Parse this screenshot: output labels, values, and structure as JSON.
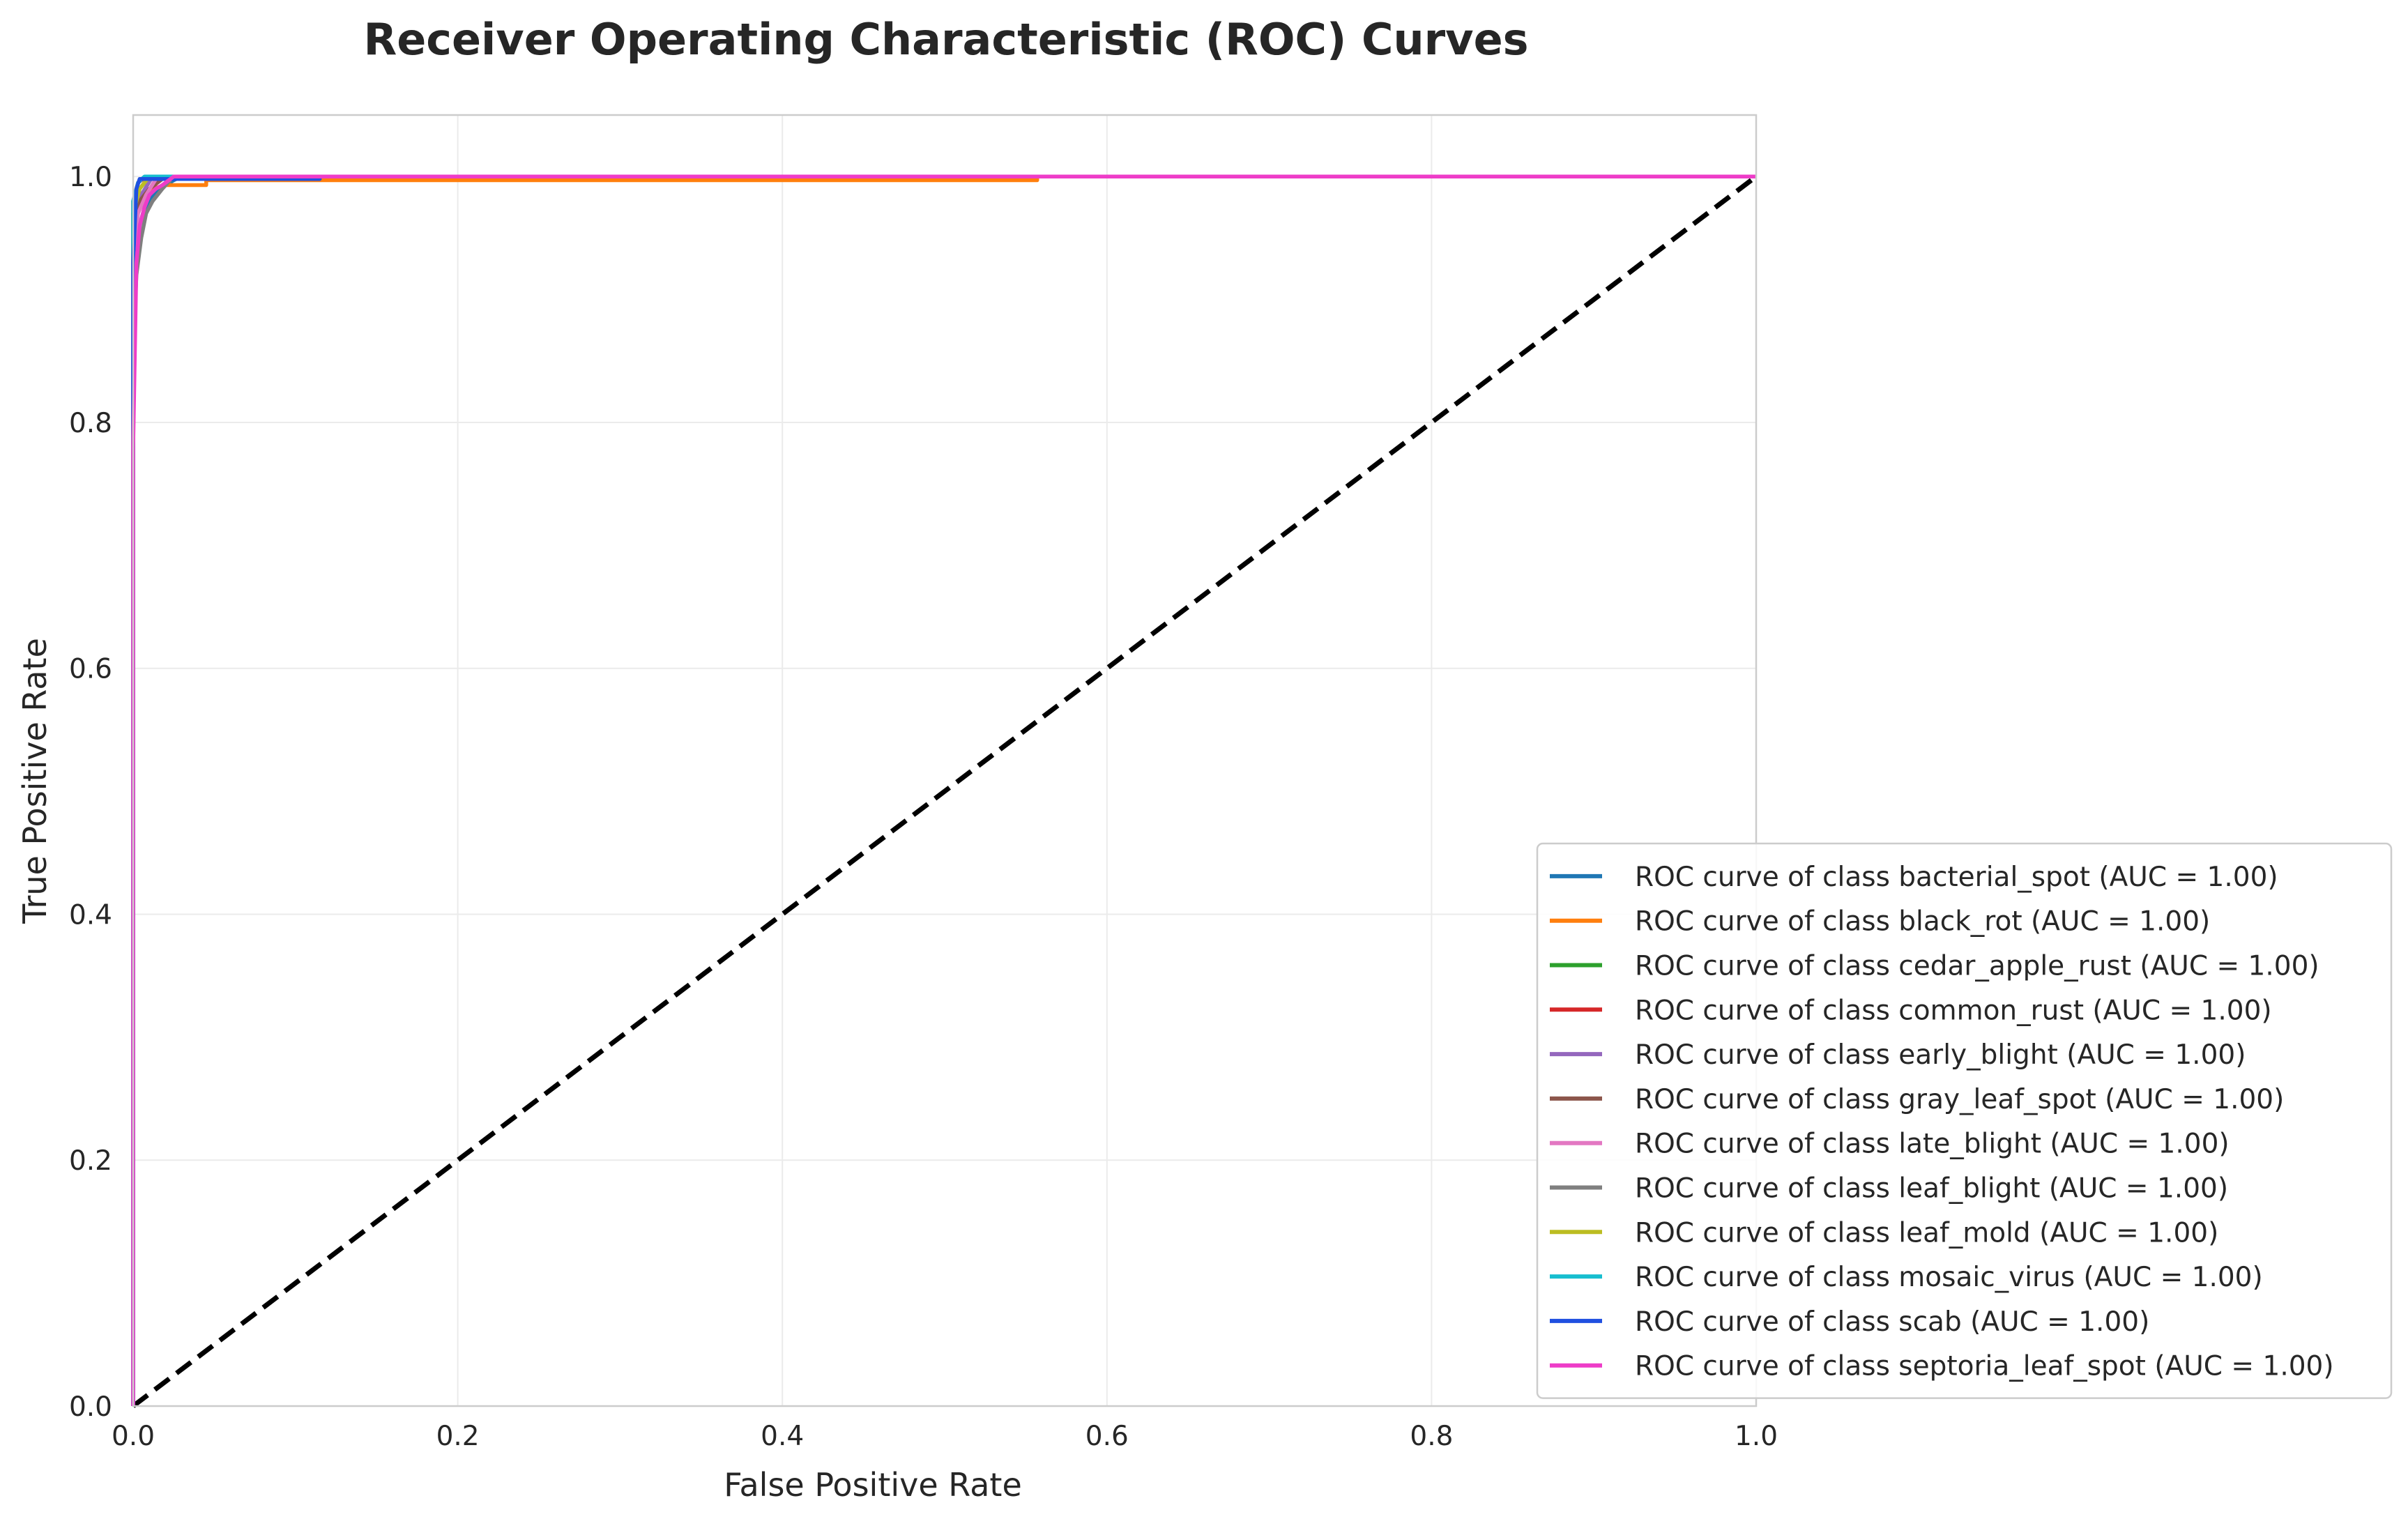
{
  "chart_data": {
    "type": "line",
    "title": "Receiver Operating Characteristic (ROC) Curves",
    "xlabel": "False Positive Rate",
    "ylabel": "True Positive Rate",
    "xlim": [
      0.0,
      1.0
    ],
    "ylim": [
      0.0,
      1.05
    ],
    "x_ticks": [
      "0.0",
      "0.2",
      "0.4",
      "0.6",
      "0.8",
      "1.0"
    ],
    "y_ticks": [
      "0.0",
      "0.2",
      "0.4",
      "0.6",
      "0.8",
      "1.0"
    ],
    "grid": true,
    "legend_position": "lower-right",
    "reference_line": {
      "x": [
        0,
        1
      ],
      "y": [
        0,
        1
      ],
      "color": "#000000",
      "style": "dashed"
    },
    "series": [
      {
        "name": "ROC curve of class bacterial_spot (AUC = 1.00)",
        "color": "#1f77b4",
        "x": [
          0,
          0,
          0.002,
          0.004,
          0.006,
          0.008,
          0.01,
          0.013,
          0.016,
          0.02,
          0.025,
          0.03,
          1.0
        ],
        "y": [
          0,
          0.9,
          0.94,
          0.96,
          0.97,
          0.975,
          0.98,
          0.985,
          0.99,
          0.993,
          0.997,
          1.0,
          1.0
        ]
      },
      {
        "name": "ROC curve of class black_rot (AUC = 1.00)",
        "color": "#ff7f0e",
        "x": [
          0,
          0,
          0.003,
          0.006,
          0.012,
          0.02,
          0.045,
          0.045,
          0.557,
          0.557,
          1.0
        ],
        "y": [
          0,
          0.95,
          0.975,
          0.985,
          0.99,
          0.993,
          0.993,
          0.997,
          0.997,
          1.0,
          1.0
        ]
      },
      {
        "name": "ROC curve of class cedar_apple_rust (AUC = 1.00)",
        "color": "#2ca02c",
        "x": [
          0,
          0,
          0.004,
          0.01,
          1.0
        ],
        "y": [
          0,
          0.97,
          0.99,
          1.0,
          1.0
        ]
      },
      {
        "name": "ROC curve of class common_rust (AUC = 1.00)",
        "color": "#d62728",
        "x": [
          0,
          0,
          0.003,
          0.008,
          1.0
        ],
        "y": [
          0,
          0.98,
          0.995,
          1.0,
          1.0
        ]
      },
      {
        "name": "ROC curve of class early_blight (AUC = 1.00)",
        "color": "#9467bd",
        "x": [
          0,
          0,
          0.005,
          0.012,
          1.0
        ],
        "y": [
          0,
          0.96,
          0.985,
          1.0,
          1.0
        ]
      },
      {
        "name": "ROC curve of class gray_leaf_spot (AUC = 1.00)",
        "color": "#8c564b",
        "x": [
          0,
          0,
          0.004,
          0.01,
          0.02,
          1.0
        ],
        "y": [
          0,
          0.95,
          0.98,
          0.99,
          1.0,
          1.0
        ]
      },
      {
        "name": "ROC curve of class late_blight (AUC = 1.00)",
        "color": "#e377c2",
        "x": [
          0,
          0,
          0.003,
          0.008,
          0.015,
          1.0
        ],
        "y": [
          0,
          0.93,
          0.97,
          0.985,
          1.0,
          1.0
        ]
      },
      {
        "name": "ROC curve of class leaf_blight (AUC = 1.00)",
        "color": "#7f7f7f",
        "x": [
          0,
          0,
          0.002,
          0.005,
          0.008,
          0.012,
          0.018,
          0.025,
          1.0
        ],
        "y": [
          0,
          0.86,
          0.92,
          0.95,
          0.97,
          0.98,
          0.99,
          1.0,
          1.0
        ]
      },
      {
        "name": "ROC curve of class leaf_mold (AUC = 1.00)",
        "color": "#bcbd22",
        "x": [
          0,
          0,
          0.004,
          0.01,
          1.0
        ],
        "y": [
          0,
          0.97,
          0.99,
          1.0,
          1.0
        ]
      },
      {
        "name": "ROC curve of class mosaic_virus (AUC = 1.00)",
        "color": "#17becf",
        "x": [
          0,
          0,
          0.003,
          0.007,
          1.0
        ],
        "y": [
          0,
          0.98,
          0.995,
          1.0,
          1.0
        ]
      },
      {
        "name": "ROC curve of class scab (AUC = 1.00)",
        "color": "#1f4fe0",
        "x": [
          0,
          0,
          0.002,
          0.004,
          0.115,
          0.115,
          1.0
        ],
        "y": [
          0,
          0.93,
          0.99,
          0.998,
          0.998,
          1.0,
          1.0
        ]
      },
      {
        "name": "ROC curve of class septoria_leaf_spot (AUC = 1.00)",
        "color": "#ee3cc8",
        "x": [
          0,
          0,
          0.002,
          0.004,
          0.007,
          0.01,
          0.014,
          0.018,
          0.022,
          0.025,
          1.0
        ],
        "y": [
          0,
          0.78,
          0.93,
          0.96,
          0.975,
          0.985,
          0.99,
          0.993,
          0.997,
          1.0,
          1.0
        ]
      }
    ]
  }
}
